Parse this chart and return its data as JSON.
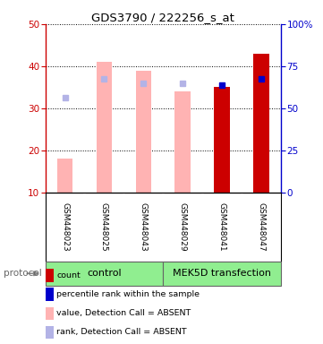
{
  "title": "GDS3790 / 222256_s_at",
  "samples": [
    "GSM448023",
    "GSM448025",
    "GSM448043",
    "GSM448029",
    "GSM448041",
    "GSM448047"
  ],
  "bar_values": [
    18.0,
    41.0,
    39.0,
    34.0,
    35.0,
    43.0
  ],
  "rank_values_left": [
    32.5,
    37.0,
    36.0,
    36.0,
    35.5,
    37.0
  ],
  "bar_absent": [
    true,
    true,
    true,
    true,
    false,
    false
  ],
  "rank_absent": [
    true,
    true,
    true,
    true,
    false,
    false
  ],
  "absent_bar_color": "#ffb3b3",
  "present_bar_color": "#cc0000",
  "absent_rank_color": "#b3b3e6",
  "present_rank_color": "#0000cc",
  "ylim_left": [
    10,
    50
  ],
  "ylim_right": [
    0,
    100
  ],
  "yticks_left": [
    10,
    20,
    30,
    40,
    50
  ],
  "yticks_right": [
    0,
    25,
    50,
    75,
    100
  ],
  "ytick_labels_right": [
    "0",
    "25",
    "50",
    "75",
    "100%"
  ],
  "left_tick_color": "#cc0000",
  "right_tick_color": "#0000cc",
  "bg_sample": "#d0d0d0",
  "bg_group": "#90ee90",
  "legend_items": [
    {
      "label": "count",
      "color": "#cc0000"
    },
    {
      "label": "percentile rank within the sample",
      "color": "#0000cc"
    },
    {
      "label": "value, Detection Call = ABSENT",
      "color": "#ffb3b3"
    },
    {
      "label": "rank, Detection Call = ABSENT",
      "color": "#b3b3e6"
    }
  ]
}
